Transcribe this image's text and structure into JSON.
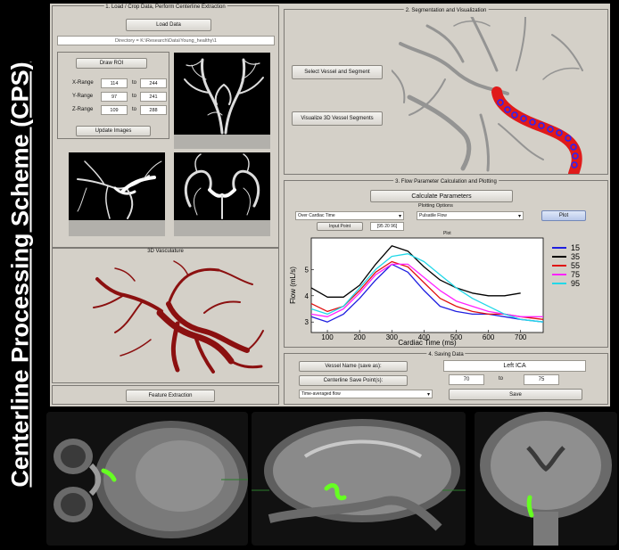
{
  "side_title": "Centerline Processing Scheme (CPS)",
  "panels": {
    "load": {
      "title": "1. Load / Crop Data, Perform Centerline Extraction",
      "load_button": "Load Data",
      "directory": "Directory = K:\\Research\\Data\\Young_healthy\\1",
      "draw_roi": "Draw ROI",
      "x_label": "X-Range",
      "x_from": "114",
      "x_to_word": "to",
      "x_to": "244",
      "y_label": "Y-Range",
      "y_from": "97",
      "y_to_word": "to",
      "y_to": "241",
      "z_label": "Z-Range",
      "z_from": "109",
      "z_to_word": "to",
      "z_to": "288",
      "update_button": "Update Images"
    },
    "vasc": {
      "title": "3D Vasculature",
      "feature_button": "Feature Extraction"
    },
    "seg": {
      "title": "2. Segmentation and Visualization",
      "select_button": "Select Vessel and Segment",
      "visualize_button": "Visualize 3D Vessel Segments",
      "segment_labels": "1 2 3 ... 95"
    },
    "flow": {
      "title": "3. Flow Parameter Calculation and Plotting",
      "calc_button": "Calculate Parameters",
      "plot_options": "Plotting Options",
      "dropdown1": "Over Cardiac Time",
      "input_point": "Input Point",
      "point_value": "[95 20 96]",
      "dropdown2": "Pulsatile Flow",
      "plot_button": "Plot",
      "plot_label": "Plot"
    },
    "save": {
      "title": "4. Saving Data",
      "vessel_name_label": "Vessel Name (save as):",
      "vessel_name": "Left ICA",
      "save_point_label": "Centerline Save Point(s):",
      "from": "70",
      "to_word": "to",
      "to": "75",
      "dropdown": "Time-averaged flow",
      "save_button": "Save"
    }
  },
  "chart_data": {
    "type": "line",
    "xlabel": "Cardiac Time (ms)",
    "ylabel": "Flow (mL/s)",
    "xlim": [
      50,
      770
    ],
    "ylim": [
      2.6,
      6.2
    ],
    "xticks": [
      100,
      200,
      300,
      400,
      500,
      600,
      700
    ],
    "yticks": [
      3,
      4,
      5
    ],
    "legend_position": "right",
    "series": [
      {
        "name": "15",
        "color": "#1f1fe0",
        "x": [
          50,
          100,
          150,
          200,
          250,
          300,
          350,
          400,
          450,
          500,
          550,
          600,
          650,
          700,
          770
        ],
        "y": [
          3.2,
          3.0,
          3.3,
          3.9,
          4.6,
          5.2,
          4.9,
          4.2,
          3.6,
          3.4,
          3.3,
          3.3,
          3.2,
          3.1,
          3.0
        ]
      },
      {
        "name": "35",
        "color": "#000000",
        "x": [
          50,
          100,
          150,
          200,
          250,
          300,
          350,
          400,
          450,
          500,
          550,
          600,
          650,
          700
        ],
        "y": [
          4.3,
          3.95,
          3.95,
          4.4,
          5.2,
          5.9,
          5.7,
          5.1,
          4.6,
          4.3,
          4.1,
          4.0,
          4.0,
          4.1
        ]
      },
      {
        "name": "55",
        "color": "#e01010",
        "x": [
          50,
          100,
          150,
          200,
          250,
          300,
          350,
          400,
          450,
          500,
          550,
          600,
          650,
          700,
          770
        ],
        "y": [
          3.7,
          3.4,
          3.6,
          4.2,
          4.9,
          5.3,
          5.1,
          4.5,
          3.9,
          3.6,
          3.4,
          3.3,
          3.3,
          3.2,
          3.1
        ]
      },
      {
        "name": "75",
        "color": "#ff22ff",
        "x": [
          50,
          100,
          150,
          200,
          250,
          300,
          350,
          400,
          450,
          500,
          550,
          600,
          650,
          700,
          770
        ],
        "y": [
          3.3,
          3.2,
          3.5,
          4.1,
          4.8,
          5.2,
          5.2,
          4.7,
          4.2,
          3.8,
          3.6,
          3.4,
          3.3,
          3.2,
          3.2
        ]
      },
      {
        "name": "95",
        "color": "#22d8e8",
        "x": [
          50,
          100,
          150,
          200,
          250,
          300,
          350,
          400,
          450,
          500,
          550,
          600,
          650,
          700,
          770
        ],
        "y": [
          3.5,
          3.3,
          3.6,
          4.3,
          5.0,
          5.5,
          5.6,
          5.3,
          4.8,
          4.3,
          3.9,
          3.6,
          3.3,
          3.1,
          3.0
        ]
      }
    ]
  },
  "colors": {
    "app_bg": "#d4d0c8",
    "vessel_red": "#8b1010",
    "segment_red": "#e01a1a",
    "segment_label_blue": "#2424ff",
    "mri_marker_green": "#66ff22"
  }
}
